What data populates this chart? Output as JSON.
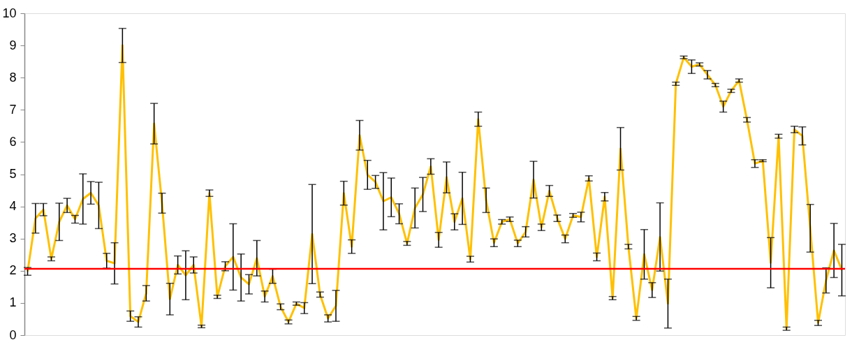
{
  "chart_data": {
    "type": "line",
    "categories": [
      null,
      null,
      null,
      null,
      null,
      null,
      null,
      null,
      null,
      null,
      null,
      null,
      null,
      null,
      null,
      null,
      null,
      null,
      null,
      null,
      null,
      null,
      null,
      null,
      null,
      null,
      null,
      null,
      null,
      null,
      null,
      null,
      null,
      null,
      null,
      null,
      null,
      null,
      null,
      null,
      null,
      null,
      null,
      null,
      null,
      null,
      null,
      null,
      null,
      null,
      null,
      null,
      null,
      null,
      null,
      null,
      null,
      null,
      null,
      null,
      null,
      null,
      null,
      null,
      null,
      null,
      null,
      null,
      null,
      null,
      null,
      null,
      null,
      null,
      null,
      null,
      null,
      null,
      null,
      null,
      null,
      null,
      null,
      null,
      null,
      null,
      null,
      null,
      null,
      null,
      null,
      null,
      null,
      null,
      null,
      null,
      null,
      null,
      null,
      null,
      null,
      null,
      null,
      null
    ],
    "series": [
      {
        "color": "#ffc000",
        "values": [
          1.98,
          3.63,
          3.9,
          2.37,
          3.52,
          4.03,
          3.6,
          4.23,
          4.42,
          4.03,
          2.31,
          2.23,
          9.0,
          0.59,
          0.41,
          1.3,
          6.57,
          4.1,
          1.12,
          2.18,
          1.86,
          2.18,
          0.27,
          4.41,
          1.19,
          2.14,
          2.43,
          1.79,
          1.58,
          2.39,
          1.2,
          1.83,
          0.88,
          0.41,
          0.98,
          0.84,
          3.14,
          1.26,
          0.52,
          0.91,
          4.41,
          2.75,
          6.21,
          4.98,
          4.76,
          4.16,
          4.28,
          3.77,
          2.85,
          3.95,
          4.37,
          5.24,
          2.96,
          4.9,
          3.52,
          4.25,
          2.36,
          6.71,
          4.19,
          2.87,
          3.52,
          3.6,
          2.85,
          3.21,
          4.83,
          3.35,
          4.48,
          3.63,
          2.99,
          3.72,
          3.67,
          4.87,
          2.43,
          4.3,
          1.15,
          5.79,
          2.75,
          0.52,
          2.51,
          1.4,
          3.05,
          0.98,
          7.81,
          8.63,
          8.34,
          8.41,
          8.09,
          7.77,
          7.1,
          7.59,
          7.91,
          6.69,
          5.33,
          5.42,
          2.25,
          6.18,
          0.2,
          6.39,
          6.19,
          3.32,
          0.38,
          1.7,
          2.63,
          2.02
        ],
        "errors": [
          0.12,
          0.46,
          0.19,
          0.06,
          0.58,
          0.22,
          0.12,
          0.78,
          0.35,
          0.72,
          0.23,
          0.64,
          0.53,
          0.16,
          0.16,
          0.24,
          0.63,
          0.31,
          0.49,
          0.28,
          0.76,
          0.25,
          0.04,
          0.1,
          0.05,
          0.14,
          1.03,
          0.73,
          0.3,
          0.55,
          0.17,
          0.22,
          0.09,
          0.06,
          0.05,
          0.17,
          1.54,
          0.08,
          0.11,
          0.48,
          0.37,
          0.21,
          0.46,
          0.45,
          0.2,
          0.89,
          0.6,
          0.31,
          0.06,
          0.62,
          0.53,
          0.24,
          0.23,
          0.48,
          0.25,
          0.81,
          0.09,
          0.22,
          0.38,
          0.12,
          0.07,
          0.07,
          0.1,
          0.16,
          0.57,
          0.1,
          0.17,
          0.1,
          0.12,
          0.06,
          0.15,
          0.08,
          0.12,
          0.13,
          0.05,
          0.66,
          0.07,
          0.06,
          0.77,
          0.23,
          1.06,
          0.76,
          0.05,
          0.04,
          0.21,
          0.05,
          0.13,
          0.05,
          0.17,
          0.05,
          0.05,
          0.07,
          0.12,
          0.03,
          0.78,
          0.06,
          0.05,
          0.1,
          0.28,
          0.74,
          0.08,
          0.39,
          0.84,
          0.8
        ]
      }
    ],
    "ylim": [
      0,
      10
    ],
    "yticks": [
      0,
      1,
      2,
      3,
      4,
      5,
      6,
      7,
      8,
      9,
      10
    ],
    "tick_labels": "y",
    "grid": false,
    "marker": "none",
    "line_style": "solid",
    "ref_lines": [
      {
        "axis": "y",
        "value": 2.06,
        "color": "#ff0000"
      }
    ]
  }
}
